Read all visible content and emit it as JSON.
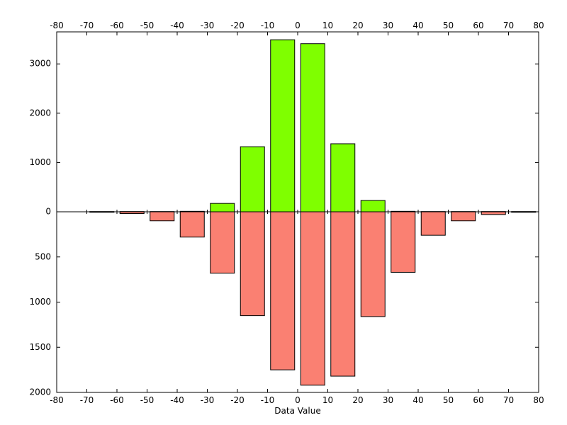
{
  "chart_data": {
    "type": "bar",
    "title": "",
    "xlabel": "Data Value",
    "x_ticks": [
      -80,
      -70,
      -60,
      -50,
      -40,
      -30,
      -20,
      -10,
      0,
      10,
      20,
      30,
      40,
      50,
      60,
      70,
      80
    ],
    "x_range": [
      -80,
      80
    ],
    "bin_width": 10,
    "bin_centers": [
      -65,
      -55,
      -45,
      -35,
      -25,
      -15,
      -5,
      5,
      15,
      25,
      35,
      45,
      55,
      65,
      75
    ],
    "upper_panel": {
      "range": [
        0,
        3650
      ],
      "ticks": [
        0,
        1000,
        2000,
        3000
      ],
      "color": "#7fff00",
      "values": [
        5,
        5,
        5,
        10,
        170,
        1320,
        3490,
        3410,
        1380,
        230,
        10,
        5,
        5,
        5,
        5
      ]
    },
    "lower_panel": {
      "range": [
        0,
        2000
      ],
      "ticks": [
        0,
        500,
        1000,
        1500,
        2000
      ],
      "color": "#fa8072",
      "values": [
        5,
        20,
        100,
        280,
        680,
        1150,
        1750,
        1920,
        1820,
        1160,
        670,
        260,
        100,
        30,
        5
      ]
    },
    "grid": false,
    "legend": false
  }
}
